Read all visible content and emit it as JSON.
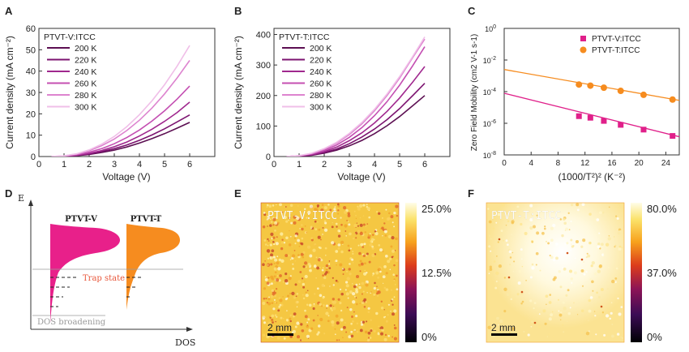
{
  "colors": {
    "v_series": [
      "#5c0f52",
      "#7c1470",
      "#a0288e",
      "#c44fb2",
      "#dd84cf",
      "#f0bfe8"
    ],
    "pink": "#e0208a",
    "orange": "#f68c1f",
    "trap": "#e8563a",
    "gray": "#9a9a9a"
  },
  "panels": {
    "A": "A",
    "B": "B",
    "C": "C",
    "D": "D",
    "E": "E",
    "F": "F"
  },
  "chart_data": [
    {
      "panel": "A",
      "type": "line",
      "title": "",
      "xlabel": "Voltage (V)",
      "ylabel": "Current density (mA cm⁻²)",
      "xlim": [
        0,
        7
      ],
      "ylim": [
        0,
        60
      ],
      "xticks": [
        "0",
        "1",
        "2",
        "3",
        "4",
        "5",
        "6"
      ],
      "yticks": [
        "0",
        "10",
        "20",
        "30",
        "40",
        "50",
        "60"
      ],
      "legend_title": "PTVT-V:ITCC",
      "legend_position": "top-left",
      "v_on": 0.55,
      "x": [
        0.5,
        1,
        1.5,
        2,
        2.5,
        3,
        3.5,
        4,
        4.5,
        5,
        5.5,
        6
      ],
      "series": [
        {
          "name": "200 K",
          "values": [
            0,
            0.1,
            0.4,
            1.0,
            1.9,
            3.0,
            4.5,
            6.3,
            8.4,
            10.7,
            13.3,
            16
          ]
        },
        {
          "name": "220 K",
          "values": [
            0,
            0.1,
            0.5,
            1.2,
            2.3,
            3.7,
            5.4,
            7.6,
            10.1,
            13.0,
            16.2,
            19.5
          ]
        },
        {
          "name": "240 K",
          "values": [
            0,
            0.2,
            0.6,
            1.5,
            2.8,
            4.6,
            6.8,
            9.6,
            12.8,
            16.5,
            20.6,
            25.5
          ]
        },
        {
          "name": "260 K",
          "values": [
            0,
            0.2,
            0.8,
            2.0,
            3.7,
            6.0,
            8.9,
            12.4,
            16.6,
            21.4,
            26.9,
            33
          ]
        },
        {
          "name": "280 K",
          "values": [
            0,
            0.3,
            1.1,
            2.7,
            5.1,
            8.2,
            12.2,
            17.0,
            22.7,
            29.3,
            36.8,
            45
          ]
        },
        {
          "name": "300 K",
          "values": [
            0,
            0.3,
            1.3,
            3.1,
            5.8,
            9.4,
            14.0,
            19.6,
            26.1,
            33.6,
            42.3,
            52
          ]
        }
      ]
    },
    {
      "panel": "B",
      "type": "line",
      "title": "",
      "xlabel": "Voltage (V)",
      "ylabel": "Current density (mA cm⁻²)",
      "xlim": [
        0,
        7
      ],
      "ylim": [
        0,
        420
      ],
      "xticks": [
        "0",
        "1",
        "2",
        "3",
        "4",
        "5",
        "6"
      ],
      "yticks": [
        "0",
        "100",
        "200",
        "300",
        "400"
      ],
      "legend_title": "PTVT-T:ITCC",
      "legend_position": "top-left",
      "v_on": 0.55,
      "x": [
        0.5,
        1,
        1.5,
        2,
        2.5,
        3,
        3.5,
        4,
        4.5,
        5,
        5.5,
        6
      ],
      "series": [
        {
          "name": "200 K",
          "values": [
            0,
            1,
            4,
            11,
            21,
            35,
            53,
            75,
            101,
            131,
            165,
            200
          ]
        },
        {
          "name": "220 K",
          "values": [
            0,
            1,
            5,
            13,
            25,
            42,
            64,
            90,
            121,
            157,
            198,
            240
          ]
        },
        {
          "name": "240 K",
          "values": [
            0,
            2,
            6,
            16,
            31,
            52,
            78,
            110,
            148,
            192,
            242,
            295
          ]
        },
        {
          "name": "260 K",
          "values": [
            0,
            2,
            8,
            20,
            38,
            63,
            95,
            134,
            180,
            234,
            295,
            360
          ]
        },
        {
          "name": "280 K",
          "values": [
            0,
            3,
            10,
            24,
            44,
            72,
            107,
            150,
            200,
            257,
            322,
            385
          ]
        },
        {
          "name": "300 K",
          "values": [
            0,
            3,
            11,
            26,
            47,
            76,
            112,
            155,
            205,
            262,
            325,
            392
          ]
        }
      ]
    },
    {
      "panel": "C",
      "type": "scatter",
      "title": "",
      "xlabel": "(1000/T²)² (K⁻²)",
      "ylabel": "Zero Field Mobility (cm2 V-1 s-1)",
      "xlim": [
        0,
        26
      ],
      "ylim_log10": [
        -8,
        0
      ],
      "yscale": "log",
      "xticks": [
        "0",
        "4",
        "8",
        "12",
        "16",
        "20",
        "24"
      ],
      "yticks_exp": [
        "0",
        "-2",
        "-4",
        "-6",
        "-8"
      ],
      "legend_position": "top-right",
      "series": [
        {
          "name": "PTVT-V:ITCC",
          "marker": "square",
          "x": [
            11.1,
            12.8,
            14.8,
            17.3,
            20.7,
            25.0
          ],
          "log10_y": [
            -5.55,
            -5.65,
            -5.85,
            -6.1,
            -6.4,
            -6.8
          ],
          "fit_log10_y": [
            -4.1,
            -6.85
          ]
        },
        {
          "name": "PTVT-T:ITCC",
          "marker": "circle",
          "x": [
            11.1,
            12.8,
            14.8,
            17.3,
            20.7,
            25.0
          ],
          "log10_y": [
            -3.55,
            -3.62,
            -3.75,
            -3.95,
            -4.2,
            -4.5
          ],
          "fit_log10_y": [
            -2.6,
            -4.55
          ]
        }
      ]
    }
  ],
  "diagram": {
    "axis_y_label": "E",
    "axis_x_label": "DOS",
    "left_label": "PTVT-V",
    "right_label": "PTVT-T",
    "trap_label": "Trap state",
    "dos_label": "DOS broadening"
  },
  "maps": [
    {
      "panel": "E",
      "title": "PTVT-V:ITCC",
      "scale_bar": "2 mm",
      "colorbar_ticks": [
        "25.0%",
        "12.5%",
        "0%"
      ]
    },
    {
      "panel": "F",
      "title": "PTVT-T:ITCC",
      "scale_bar": "2 mm",
      "colorbar_ticks": [
        "80.0%",
        "37.0%",
        "0%"
      ]
    }
  ]
}
